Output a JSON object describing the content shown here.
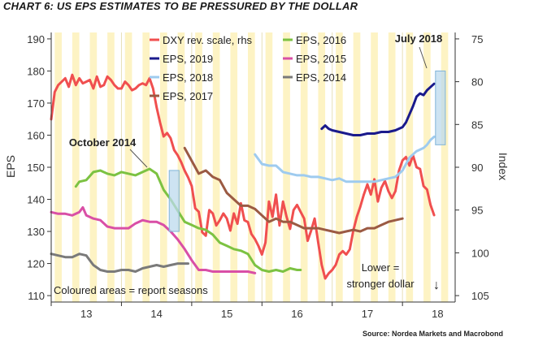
{
  "title": "CHART 6: US EPS ESTIMATES TO BE PRESSURED BY THE DOLLAR",
  "source": "Source: Nordea Markets and Macrobond",
  "colors": {
    "season_band": "#fdf3c4",
    "highlight_box": "#bcd9ee",
    "highlight_edge": "#7fb3d8",
    "axis": "#333333"
  },
  "chart_data": {
    "type": "line",
    "xlabel": "",
    "ylabel": "EPS",
    "ylabel_right": "Index",
    "x_range": [
      2013.0,
      2018.75
    ],
    "ylim": [
      108,
      192
    ],
    "ylim_right": [
      75,
      105
    ],
    "right_axis_inverted": true,
    "x_ticks": [
      {
        "value": 2013.5,
        "label": "13"
      },
      {
        "value": 2014.5,
        "label": "14"
      },
      {
        "value": 2015.5,
        "label": "15"
      },
      {
        "value": 2016.5,
        "label": "16"
      },
      {
        "value": 2017.5,
        "label": "17"
      },
      {
        "value": 2018.5,
        "label": "18"
      }
    ],
    "x_year_boundaries": [
      2014,
      2015,
      2016,
      2017,
      2018
    ],
    "y_ticks": [
      110,
      120,
      130,
      140,
      150,
      160,
      170,
      180,
      190
    ],
    "y_ticks_right": [
      75,
      80,
      85,
      90,
      95,
      100,
      105
    ],
    "report_seasons": [
      [
        2013.05,
        2013.15
      ],
      [
        2013.3,
        2013.4
      ],
      [
        2013.55,
        2013.65
      ],
      [
        2013.8,
        2013.9
      ],
      [
        2014.05,
        2014.15
      ],
      [
        2014.3,
        2014.4
      ],
      [
        2014.55,
        2014.65
      ],
      [
        2014.8,
        2014.9
      ],
      [
        2015.05,
        2015.15
      ],
      [
        2015.3,
        2015.4
      ],
      [
        2015.55,
        2015.65
      ],
      [
        2015.8,
        2015.9
      ],
      [
        2016.05,
        2016.15
      ],
      [
        2016.3,
        2016.4
      ],
      [
        2016.55,
        2016.65
      ],
      [
        2016.8,
        2016.9
      ],
      [
        2017.05,
        2017.15
      ],
      [
        2017.3,
        2017.4
      ],
      [
        2017.55,
        2017.65
      ],
      [
        2017.8,
        2017.9
      ],
      [
        2018.05,
        2018.15
      ],
      [
        2018.3,
        2018.4
      ],
      [
        2018.55,
        2018.65
      ]
    ],
    "highlights": [
      {
        "label": "October 2014",
        "x": [
          2014.68,
          2014.82
        ],
        "y": [
          130,
          149
        ]
      },
      {
        "label": "July 2018",
        "x": [
          2018.47,
          2018.61
        ],
        "y": [
          157,
          180
        ]
      }
    ],
    "legend": [
      {
        "label": "DXY rev. scale, rhs",
        "color": "#f04f4f"
      },
      {
        "label": "EPS, 2016",
        "color": "#7cc242"
      },
      {
        "label": "EPS, 2019",
        "color": "#1a1a8c"
      },
      {
        "label": "EPS, 2015",
        "color": "#d94fa6"
      },
      {
        "label": "EPS, 2018",
        "color": "#9ecbef"
      },
      {
        "label": "EPS, 2014",
        "color": "#7a7a7a"
      },
      {
        "label": "EPS, 2017",
        "color": "#9b5a43"
      }
    ],
    "series": [
      {
        "name": "DXY rev. scale, rhs",
        "axis": "right",
        "color": "#f04f4f",
        "x": [
          2013.0,
          2013.05,
          2013.1,
          2013.15,
          2013.2,
          2013.25,
          2013.3,
          2013.35,
          2013.4,
          2013.45,
          2013.5,
          2013.55,
          2013.6,
          2013.65,
          2013.7,
          2013.75,
          2013.8,
          2013.85,
          2013.9,
          2013.95,
          2014.0,
          2014.05,
          2014.1,
          2014.15,
          2014.2,
          2014.25,
          2014.3,
          2014.35,
          2014.4,
          2014.45,
          2014.5,
          2014.55,
          2014.6,
          2014.65,
          2014.7,
          2014.75,
          2014.8,
          2014.85,
          2014.9,
          2014.95,
          2015.0,
          2015.05,
          2015.1,
          2015.15,
          2015.2,
          2015.25,
          2015.3,
          2015.35,
          2015.4,
          2015.45,
          2015.5,
          2015.55,
          2015.6,
          2015.65,
          2015.7,
          2015.75,
          2015.8,
          2015.85,
          2015.9,
          2015.95,
          2016.0,
          2016.05,
          2016.1,
          2016.15,
          2016.2,
          2016.25,
          2016.3,
          2016.35,
          2016.4,
          2016.45,
          2016.5,
          2016.55,
          2016.6,
          2016.65,
          2016.7,
          2016.75,
          2016.8,
          2016.85,
          2016.9,
          2016.95,
          2017.0,
          2017.05,
          2017.1,
          2017.15,
          2017.2,
          2017.25,
          2017.3,
          2017.35,
          2017.4,
          2017.45,
          2017.5,
          2017.55,
          2017.6,
          2017.65,
          2017.7,
          2017.75,
          2017.8,
          2017.85,
          2017.9,
          2017.95,
          2018.0,
          2018.05,
          2018.1,
          2018.15,
          2018.2,
          2018.25,
          2018.3,
          2018.35,
          2018.4,
          2018.45
        ],
        "values": [
          84.4,
          81.2,
          80.4,
          80.0,
          79.6,
          80.6,
          79.2,
          80.4,
          79.6,
          80.2,
          80.0,
          79.8,
          80.8,
          79.4,
          80.6,
          80.4,
          79.4,
          79.8,
          80.4,
          80.8,
          80.8,
          80.0,
          80.4,
          81.0,
          80.8,
          80.4,
          80.2,
          80.4,
          79.6,
          80.8,
          83.0,
          84.8,
          86.4,
          86.0,
          86.6,
          88.0,
          88.6,
          89.4,
          90.4,
          91.2,
          92.2,
          94.8,
          95.2,
          97.6,
          98.0,
          95.0,
          95.4,
          96.8,
          96.2,
          95.4,
          96.0,
          97.4,
          95.4,
          96.6,
          94.2,
          96.2,
          96.4,
          97.8,
          98.4,
          99.2,
          100.2,
          98.8,
          94.0,
          95.8,
          93.2,
          96.8,
          94.0,
          95.8,
          97.2,
          95.0,
          94.4,
          95.2,
          96.0,
          98.6,
          97.4,
          96.0,
          98.8,
          101.4,
          103.0,
          102.4,
          102.0,
          101.4,
          100.2,
          99.8,
          100.2,
          99.6,
          97.4,
          95.8,
          94.6,
          93.2,
          92.0,
          93.2,
          91.4,
          94.0,
          92.4,
          91.6,
          92.8,
          93.6,
          92.8,
          90.4,
          89.2,
          88.8,
          89.8,
          88.6,
          90.0,
          90.2,
          92.2,
          92.6,
          94.4,
          95.6
        ]
      },
      {
        "name": "EPS, 2016",
        "axis": "left",
        "color": "#7cc242",
        "x": [
          2013.35,
          2013.4,
          2013.5,
          2013.6,
          2013.7,
          2013.8,
          2013.9,
          2014.0,
          2014.1,
          2014.2,
          2014.3,
          2014.4,
          2014.5,
          2014.6,
          2014.7,
          2014.8,
          2014.9,
          2015.0,
          2015.1,
          2015.2,
          2015.3,
          2015.4,
          2015.5,
          2015.6,
          2015.7,
          2015.8,
          2015.9,
          2016.0,
          2016.1,
          2016.2,
          2016.3,
          2016.4,
          2016.5,
          2016.55
        ],
        "values": [
          144.0,
          145.5,
          146.0,
          148.5,
          149.0,
          148.0,
          147.5,
          148.5,
          148.0,
          147.5,
          148.5,
          149.5,
          148.0,
          143.0,
          140.0,
          136.5,
          133.0,
          132.0,
          131.0,
          130.5,
          129.0,
          126.5,
          125.5,
          124.5,
          124.0,
          123.0,
          119.5,
          118.0,
          117.5,
          118.0,
          117.5,
          118.5,
          118.0,
          118.0
        ]
      },
      {
        "name": "EPS, 2019",
        "axis": "left",
        "color": "#1a1a8c",
        "x": [
          2016.85,
          2016.9,
          2016.95,
          2017.0,
          2017.1,
          2017.2,
          2017.3,
          2017.4,
          2017.5,
          2017.6,
          2017.7,
          2017.8,
          2017.9,
          2018.0,
          2018.05,
          2018.1,
          2018.15,
          2018.2,
          2018.25,
          2018.3,
          2018.35,
          2018.4,
          2018.45
        ],
        "values": [
          162.0,
          163.0,
          162.0,
          161.5,
          161.0,
          160.5,
          160.0,
          160.0,
          160.5,
          160.5,
          161.0,
          161.0,
          161.5,
          162.5,
          164.0,
          166.5,
          169.0,
          172.0,
          173.0,
          172.5,
          174.0,
          175.0,
          176.0
        ]
      },
      {
        "name": "EPS, 2015",
        "axis": "left",
        "color": "#d94fa6",
        "x": [
          2013.0,
          2013.1,
          2013.2,
          2013.3,
          2013.4,
          2013.45,
          2013.5,
          2013.6,
          2013.7,
          2013.8,
          2013.9,
          2014.0,
          2014.1,
          2014.2,
          2014.3,
          2014.4,
          2014.5,
          2014.6,
          2014.7,
          2014.8,
          2014.9,
          2015.0,
          2015.1,
          2015.2,
          2015.3,
          2015.4,
          2015.5,
          2015.6,
          2015.7,
          2015.8,
          2015.9
        ],
        "values": [
          136.0,
          135.5,
          135.5,
          135.0,
          136.0,
          137.5,
          135.0,
          134.0,
          133.5,
          131.5,
          131.0,
          131.0,
          131.0,
          132.5,
          133.5,
          133.0,
          133.0,
          132.0,
          130.0,
          127.5,
          124.5,
          121.0,
          118.0,
          118.0,
          117.5,
          117.5,
          117.5,
          117.5,
          117.5,
          117.5,
          117.0
        ]
      },
      {
        "name": "EPS, 2018",
        "axis": "left",
        "color": "#9ecbef",
        "x": [
          2015.9,
          2016.0,
          2016.1,
          2016.2,
          2016.3,
          2016.4,
          2016.5,
          2016.6,
          2016.7,
          2016.8,
          2016.9,
          2017.0,
          2017.1,
          2017.2,
          2017.3,
          2017.4,
          2017.5,
          2017.6,
          2017.7,
          2017.8,
          2017.9,
          2018.0,
          2018.1,
          2018.2,
          2018.3,
          2018.35,
          2018.4,
          2018.45
        ],
        "values": [
          154.0,
          151.0,
          150.5,
          150.5,
          148.5,
          148.0,
          147.5,
          147.5,
          147.0,
          147.0,
          146.5,
          146.0,
          146.5,
          145.5,
          145.5,
          145.5,
          145.5,
          145.5,
          146.0,
          146.5,
          147.0,
          149.0,
          153.0,
          155.0,
          156.0,
          157.0,
          158.5,
          159.5
        ]
      },
      {
        "name": "EPS, 2014",
        "axis": "left",
        "color": "#7a7a7a",
        "x": [
          2013.0,
          2013.1,
          2013.2,
          2013.3,
          2013.4,
          2013.5,
          2013.55,
          2013.6,
          2013.7,
          2013.8,
          2013.9,
          2014.0,
          2014.1,
          2014.2,
          2014.3,
          2014.4,
          2014.5,
          2014.6,
          2014.7,
          2014.8,
          2014.9,
          2014.95
        ],
        "values": [
          123.0,
          122.5,
          122.0,
          122.0,
          123.0,
          122.5,
          121.0,
          119.5,
          118.0,
          117.5,
          117.5,
          118.0,
          118.0,
          117.5,
          118.5,
          119.0,
          119.5,
          119.0,
          119.5,
          120.0,
          120.0,
          120.0
        ]
      },
      {
        "name": "EPS, 2017",
        "axis": "left",
        "color": "#9b5a43",
        "x": [
          2014.9,
          2015.0,
          2015.1,
          2015.2,
          2015.3,
          2015.4,
          2015.5,
          2015.6,
          2015.7,
          2015.8,
          2015.9,
          2016.0,
          2016.1,
          2016.2,
          2016.3,
          2016.4,
          2016.5,
          2016.6,
          2016.7,
          2016.8,
          2016.9,
          2017.0,
          2017.1,
          2017.2,
          2017.3,
          2017.4,
          2017.5,
          2017.6,
          2017.7,
          2017.8,
          2017.9,
          2018.0
        ],
        "values": [
          156.0,
          152.0,
          148.0,
          149.0,
          147.0,
          146.0,
          142.0,
          140.0,
          138.0,
          138.0,
          137.0,
          135.0,
          133.0,
          134.0,
          133.0,
          133.0,
          132.0,
          131.0,
          131.0,
          131.0,
          130.5,
          130.0,
          129.5,
          130.0,
          130.5,
          130.0,
          131.0,
          131.0,
          132.0,
          133.0,
          133.5,
          134.0
        ]
      }
    ],
    "annotations": [
      {
        "text": "October 2014"
      },
      {
        "text": "July 2018"
      },
      {
        "text": "Coloured areas = report seasons"
      },
      {
        "text": "Lower ="
      },
      {
        "text": "stronger dollar"
      },
      {
        "text": "↓"
      }
    ]
  }
}
